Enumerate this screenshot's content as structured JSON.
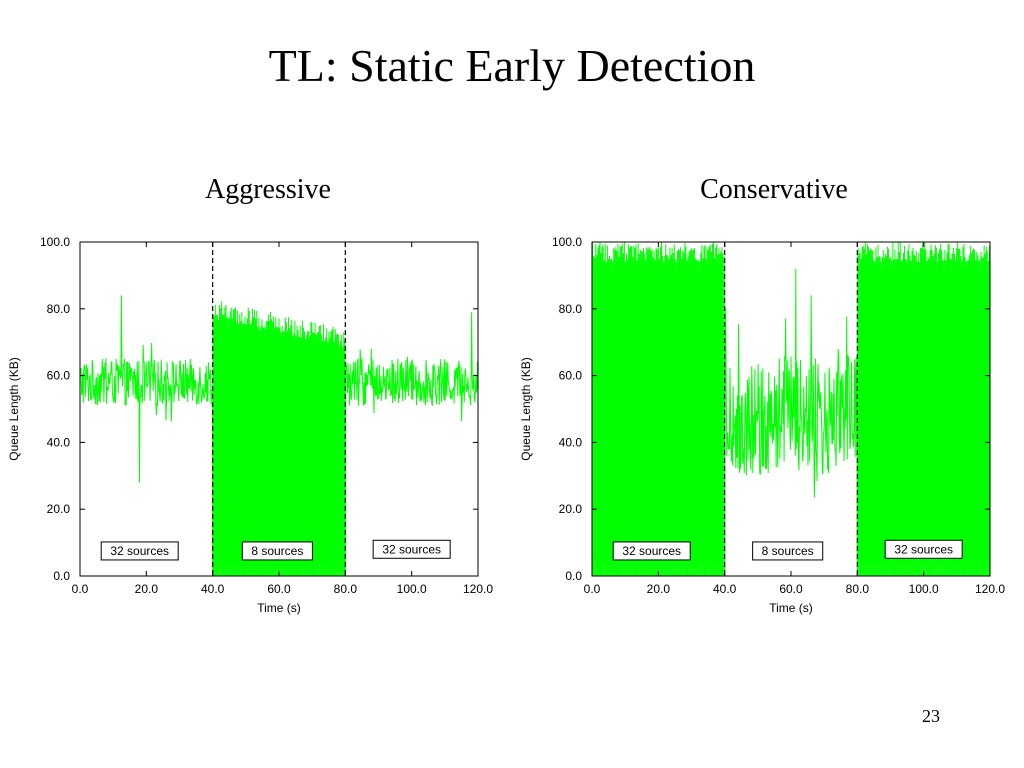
{
  "slide": {
    "title": "TL: Static Early Detection",
    "page_number": "23"
  },
  "colors": {
    "series": "#00ff00",
    "axis": "#000000",
    "divider": "#000000",
    "background": "#ffffff"
  },
  "chart_data": [
    {
      "type": "line",
      "title": "Aggressive",
      "xlabel": "Time (s)",
      "ylabel": "Queue Length (KB)",
      "xlim": [
        0,
        120
      ],
      "ylim": [
        0,
        100
      ],
      "x_ticks": [
        "0.0",
        "20.0",
        "40.0",
        "60.0",
        "80.0",
        "100.0",
        "120.0"
      ],
      "y_ticks": [
        "0.0",
        "20.0",
        "40.0",
        "60.0",
        "80.0",
        "100.0"
      ],
      "grid": false,
      "dividers": [
        40,
        80
      ],
      "annotations": [
        {
          "text": "32 sources",
          "x": 18,
          "y": 7.5
        },
        {
          "text": "8 sources",
          "x": 59.5,
          "y": 7.5
        },
        {
          "text": "32 sources",
          "x": 100,
          "y": 8
        }
      ],
      "series": [
        {
          "segments": [
            {
              "x": [
                0,
                40
              ],
              "mean": 58,
              "spread": 7,
              "spikes": [
                [
                  12.5,
                  84
                ],
                [
                  18,
                  28
                ]
              ]
            },
            {
              "x": [
                40,
                80
              ],
              "min": 0,
              "max": [
                83,
                74
              ],
              "oscillate": true
            },
            {
              "x": [
                80,
                120
              ],
              "mean": 58,
              "spread": 7,
              "spikes": [
                [
                  118,
                  79
                ]
              ]
            }
          ]
        }
      ]
    },
    {
      "type": "line",
      "title": "Conservative",
      "xlabel": "Time (s)",
      "ylabel": "Queue Length (KB)",
      "xlim": [
        0,
        120
      ],
      "ylim": [
        0,
        100
      ],
      "x_ticks": [
        "0.0",
        "20.0",
        "40.0",
        "60.0",
        "80.0",
        "100.0",
        "120.0"
      ],
      "y_ticks": [
        "0.0",
        "20.0",
        "40.0",
        "60.0",
        "80.0",
        "100.0"
      ],
      "grid": false,
      "dividers": [
        40,
        80
      ],
      "annotations": [
        {
          "text": "32 sources",
          "x": 18,
          "y": 7.5
        },
        {
          "text": "8 sources",
          "x": 59,
          "y": 7.5
        },
        {
          "text": "32 sources",
          "x": 100,
          "y": 8
        }
      ],
      "series": [
        {
          "segments": [
            {
              "x": [
                0,
                40
              ],
              "min": 0,
              "max": 100,
              "oscillate": true
            },
            {
              "x": [
                40,
                80
              ],
              "mean": 48,
              "spread": 18,
              "spikes": [
                [
                  61.5,
                  92
                ],
                [
                  66,
                  84
                ]
              ]
            },
            {
              "x": [
                80,
                120
              ],
              "min": 0,
              "max": 100,
              "oscillate": true
            }
          ]
        }
      ]
    }
  ]
}
